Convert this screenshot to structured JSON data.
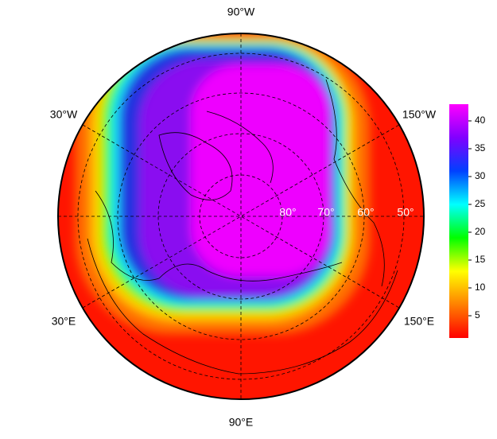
{
  "map": {
    "longitude_labels": [
      "90°W",
      "150°W",
      "150°E",
      "90°E",
      "30°E",
      "30°W"
    ],
    "latitude_labels": [
      "80°",
      "70°",
      "60°",
      "50°"
    ],
    "colorbar": {
      "lim": [
        1,
        43
      ],
      "ticks": [
        5,
        10,
        15,
        20,
        25,
        30,
        35,
        40
      ],
      "colors": [
        "#ff0000",
        "#ff8000",
        "#ffff00",
        "#00ff00",
        "#00ffff",
        "#0040ff",
        "#8000ff",
        "#ff00ff"
      ]
    }
  }
}
